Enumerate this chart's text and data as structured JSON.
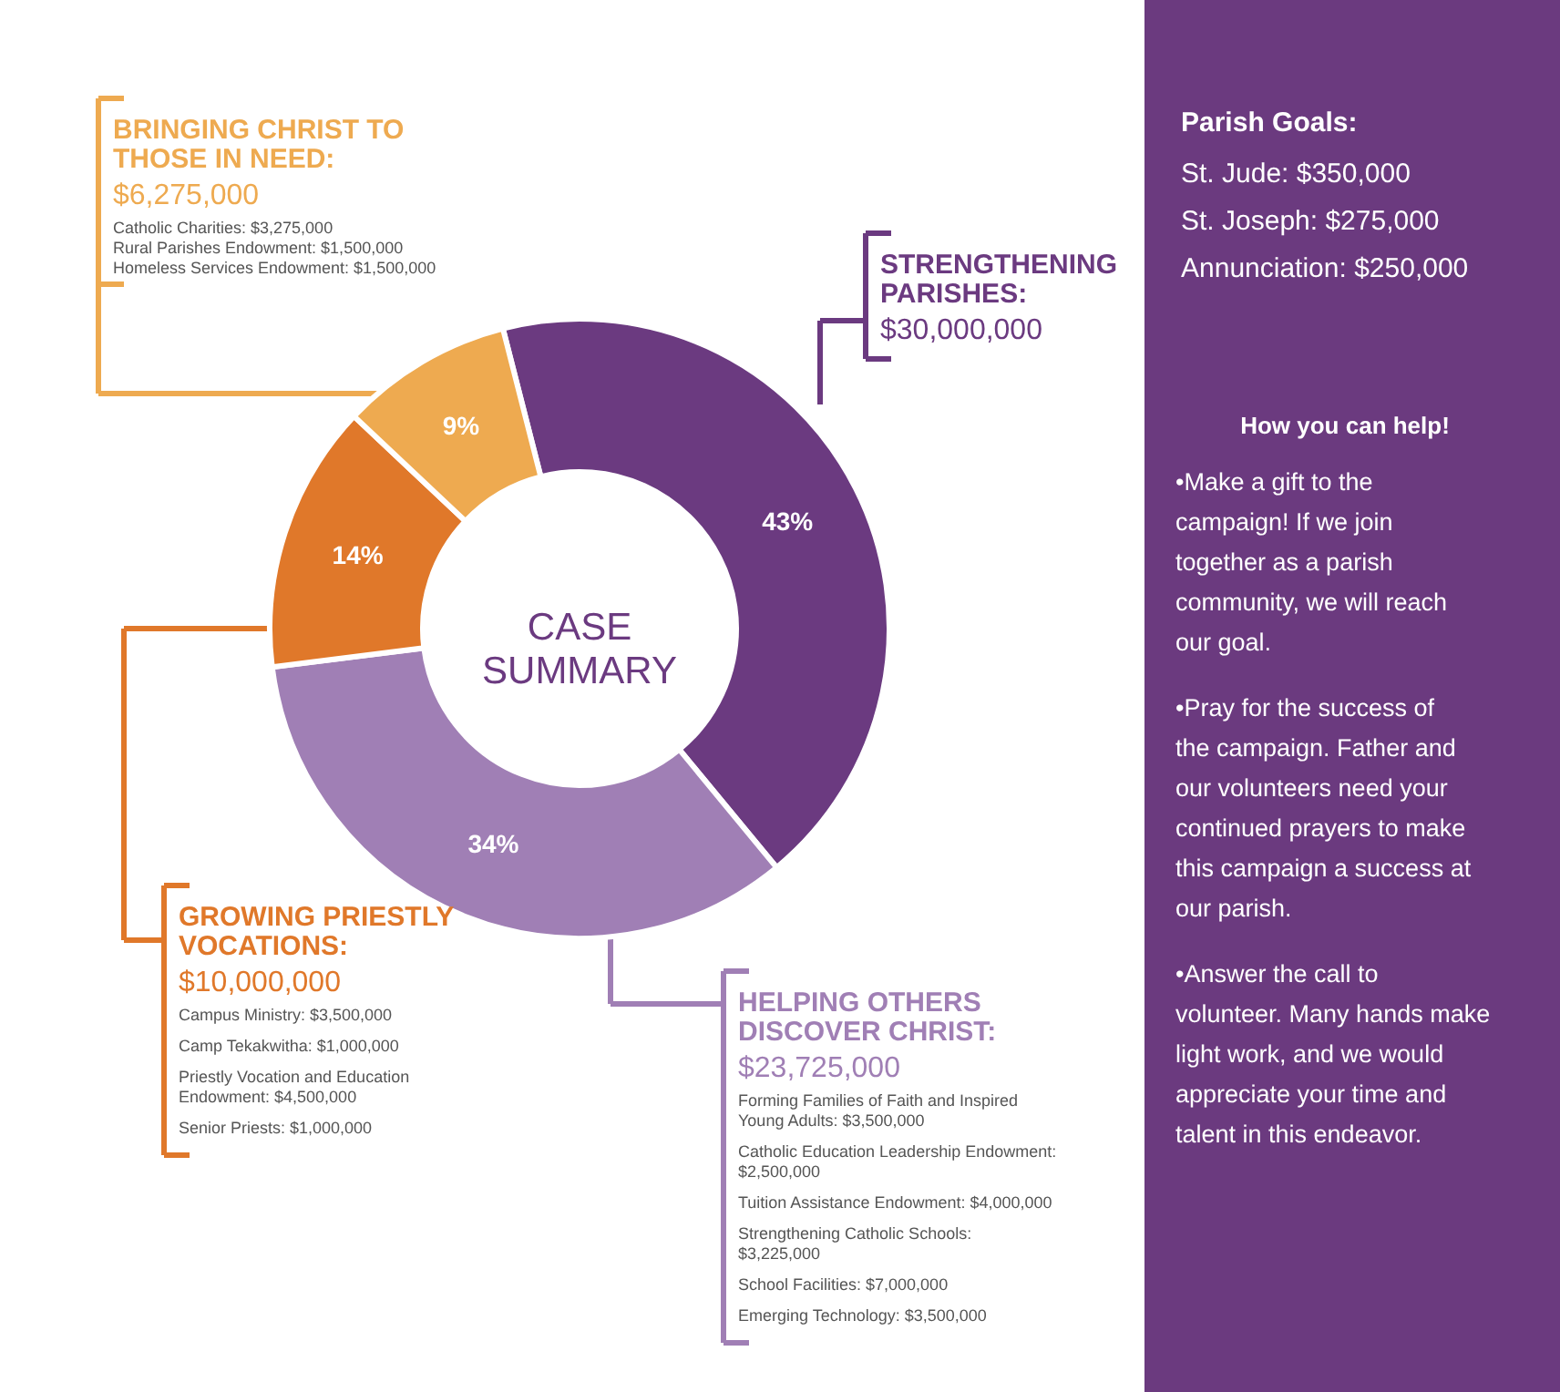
{
  "chart_data": {
    "type": "donut",
    "title": "CASE SUMMARY",
    "categories": [
      null,
      null,
      null,
      null
    ],
    "values": [
      43,
      34,
      14,
      9
    ],
    "value_labels": [
      "43%",
      "34%",
      "14%",
      "9%"
    ],
    "colors": [
      "#6b3a80",
      "#a07fb5",
      "#e0782a",
      "#eeaa50"
    ],
    "annotations": [
      "BRINGING CHRIST TO THOSE IN NEED:",
      "$6,275,000",
      "Catholic Charities: $3,275,000",
      "Rural Parishes Endowment: $1,500,000",
      "Homeless Services Endowment: $1,500,000",
      "STRENGTHENING PARISHES:",
      "$30,000,000",
      "GROWING PRIESTLY VOCATIONS:",
      "$10,000,000",
      "Campus Ministry: $3,500,000",
      "Camp Tekakwitha: $1,000,000",
      "Priestly Vocation and Education Endowment: $4,500,000",
      "Senior Priests: $1,000,000",
      "HELPING OTHERS DISCOVER CHRIST:",
      "$23,725,000",
      "Forming Families of Faith and Inspired Young Adults: $3,500,000",
      "Catholic Education Leadership Endowment: $2,500,000",
      "Tuition Assistance Endowment: $4,000,000",
      "Strengthening Catholic Schools: $3,225,000",
      "School Facilities: $7,000,000",
      "Emerging Technology: $3,500,000",
      "Parish Goals:",
      "St. Jude: $350,000",
      "St. Joseph: $275,000",
      "Annunciation: $250,000",
      "How you can help!",
      "•Make a gift to the campaign! If we join together as a parish community, we will reach our goal.",
      "•Pray for the success of the campaign. Father and our volunteers need your continued prayers to make this campaign a success at our parish.",
      "•Answer the call to volunteer. Many hands make light work, and we would appreciate your time and talent in this endeavor."
    ]
  }
}
